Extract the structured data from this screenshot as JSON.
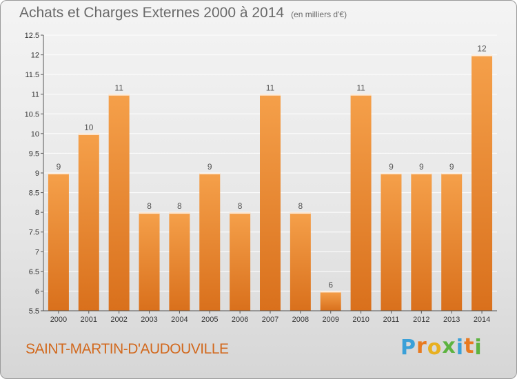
{
  "chart_data": {
    "type": "bar",
    "title": "Achats et Charges Externes 2000 à 2014",
    "unit_label": "(en milliers d'€)",
    "xlabel": "",
    "ylabel": "",
    "ylim": [
      5.5,
      12.5
    ],
    "yticks": [
      "5.5",
      "6",
      "6.5",
      "7",
      "7.5",
      "8",
      "8.5",
      "9",
      "9.5",
      "10",
      "10.5",
      "11",
      "11.5",
      "12",
      "12.5"
    ],
    "grid": true,
    "categories": [
      "2000",
      "2001",
      "2002",
      "2003",
      "2004",
      "2005",
      "2006",
      "2007",
      "2008",
      "2009",
      "2010",
      "2011",
      "2012",
      "2013",
      "2014"
    ],
    "values": [
      9,
      10,
      11,
      8,
      8,
      9,
      8,
      11,
      8,
      6,
      11,
      9,
      9,
      9,
      12
    ],
    "value_labels": [
      "9",
      "10",
      "11",
      "8",
      "8",
      "9",
      "8",
      "11",
      "8",
      "6",
      "11",
      "9",
      "9",
      "9",
      "12"
    ],
    "bar_color": "#f5a04a",
    "bar_color_dark": "#d9701c"
  },
  "footer": {
    "commune": "SAINT-MARTIN-D'AUDOUVILLE",
    "logo_letters": [
      "P",
      "r",
      "o",
      "x",
      "i",
      "t",
      "i"
    ],
    "logo_colors": [
      "#3aa0d8",
      "#e87a20",
      "#e8b020",
      "#5db340",
      "#3aa0d8",
      "#e87a20",
      "#5db340"
    ]
  }
}
